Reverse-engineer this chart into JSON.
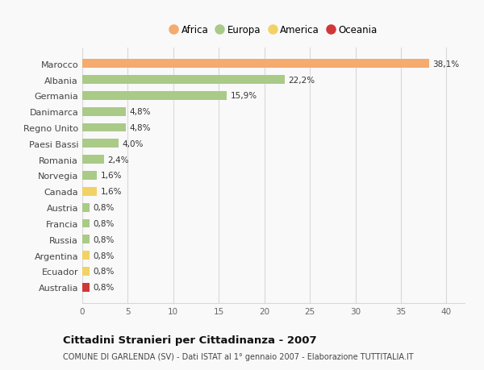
{
  "categories": [
    "Marocco",
    "Albania",
    "Germania",
    "Danimarca",
    "Regno Unito",
    "Paesi Bassi",
    "Romania",
    "Norvegia",
    "Canada",
    "Austria",
    "Francia",
    "Russia",
    "Argentina",
    "Ecuador",
    "Australia"
  ],
  "values": [
    38.1,
    22.2,
    15.9,
    4.8,
    4.8,
    4.0,
    2.4,
    1.6,
    1.6,
    0.8,
    0.8,
    0.8,
    0.8,
    0.8,
    0.8
  ],
  "labels": [
    "38,1%",
    "22,2%",
    "15,9%",
    "4,8%",
    "4,8%",
    "4,0%",
    "2,4%",
    "1,6%",
    "1,6%",
    "0,8%",
    "0,8%",
    "0,8%",
    "0,8%",
    "0,8%",
    "0,8%"
  ],
  "continents": [
    "Africa",
    "Europa",
    "Europa",
    "Europa",
    "Europa",
    "Europa",
    "Europa",
    "Europa",
    "America",
    "Europa",
    "Europa",
    "Europa",
    "America",
    "America",
    "Oceania"
  ],
  "colors": {
    "Africa": "#F5AA6E",
    "Europa": "#AACA88",
    "America": "#F2D265",
    "Oceania": "#D03838"
  },
  "legend_order": [
    "Africa",
    "Europa",
    "America",
    "Oceania"
  ],
  "title": "Cittadini Stranieri per Cittadinanza - 2007",
  "subtitle": "COMUNE DI GARLENDA (SV) - Dati ISTAT al 1° gennaio 2007 - Elaborazione TUTTITALIA.IT",
  "xlim": [
    0,
    42
  ],
  "xticks": [
    0,
    5,
    10,
    15,
    20,
    25,
    30,
    35,
    40
  ],
  "background_color": "#f9f9f9",
  "grid_color": "#d8d8d8"
}
